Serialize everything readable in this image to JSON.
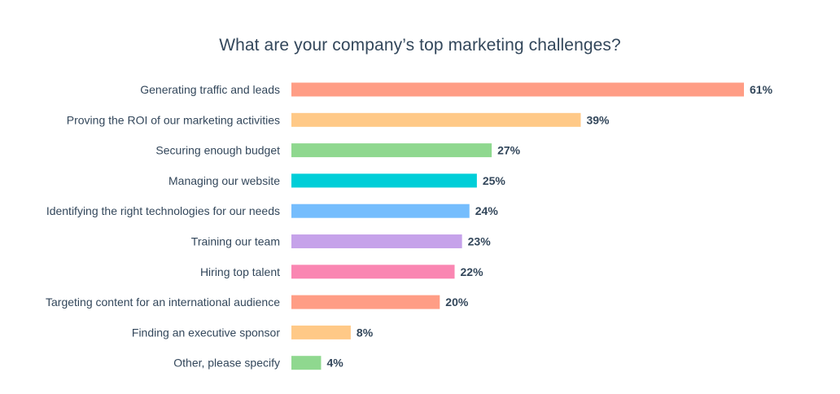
{
  "chart_data": {
    "type": "bar",
    "orientation": "horizontal",
    "title": "What are your company’s top marketing challenges?",
    "xlabel": "",
    "ylabel": "",
    "grid": false,
    "legend": "none",
    "xlim": [
      0,
      61
    ],
    "categories": [
      "Generating traffic and leads",
      "Proving the ROI of our marketing activities",
      "Securing enough budget",
      "Managing our website",
      "Identifying the right technologies for our needs",
      "Training our team",
      "Hiring top talent",
      "Targeting content for an international audience",
      "Finding an executive sponsor",
      "Other, please specify"
    ],
    "values": [
      61,
      39,
      27,
      25,
      24,
      23,
      22,
      20,
      8,
      4
    ],
    "data_labels": [
      "61%",
      "39%",
      "27%",
      "25%",
      "24%",
      "23%",
      "22%",
      "20%",
      "8%",
      "4%"
    ],
    "colors": [
      "#ff9d85",
      "#ffc987",
      "#8fd88f",
      "#00ced8",
      "#75bdfd",
      "#c6a2ea",
      "#fa86b2",
      "#ff9d85",
      "#ffc987",
      "#8fd88f"
    ]
  }
}
